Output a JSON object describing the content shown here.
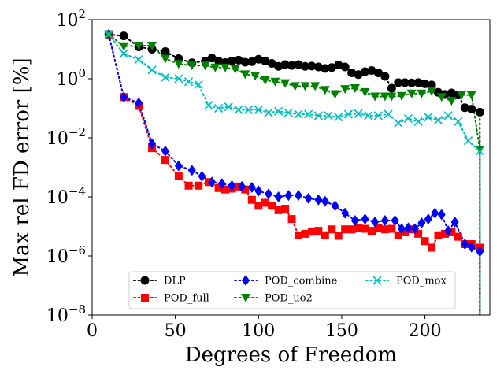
{
  "chart_data": {
    "type": "line",
    "xlabel": "Degrees of Freedom",
    "ylabel": "Max rel FD error [%]",
    "xlim": [
      0,
      239
    ],
    "ylim_log10": [
      -8,
      2
    ],
    "yscale": "log",
    "grid": false,
    "legend_position": "lower center",
    "x_ticks": [
      {
        "value": 0,
        "label": "0"
      },
      {
        "value": 50,
        "label": "50"
      },
      {
        "value": 100,
        "label": "100"
      },
      {
        "value": 150,
        "label": "150"
      },
      {
        "value": 200,
        "label": "200"
      }
    ],
    "y_ticks": [
      {
        "exp": 2,
        "base": "10",
        "sup": "2"
      },
      {
        "exp": 0,
        "base": "10",
        "sup": "0"
      },
      {
        "exp": -2,
        "base": "10",
        "sup": "−2"
      },
      {
        "exp": -4,
        "base": "10",
        "sup": "−4"
      },
      {
        "exp": -6,
        "base": "10",
        "sup": "−6"
      },
      {
        "exp": -8,
        "base": "10",
        "sup": "−8"
      }
    ],
    "series": [
      {
        "name": "DLP",
        "color": "#000000",
        "marker": "circle",
        "x": [
          10,
          19,
          28,
          36,
          44,
          52,
          60,
          68,
          72,
          76,
          80,
          84,
          88,
          92,
          96,
          100,
          104,
          108,
          112,
          116,
          120,
          124,
          128,
          132,
          136,
          140,
          144,
          148,
          152,
          156,
          160,
          164,
          168,
          172,
          176,
          180,
          184,
          188,
          192,
          196,
          200,
          204,
          208,
          212,
          216,
          220,
          224,
          228,
          233
        ],
        "log10y": [
          1.5,
          1.45,
          1.08,
          1.0,
          0.92,
          0.68,
          0.54,
          0.6,
          0.7,
          0.6,
          0.55,
          0.6,
          0.63,
          0.56,
          0.58,
          0.66,
          0.6,
          0.52,
          0.42,
          0.48,
          0.45,
          0.48,
          0.42,
          0.43,
          0.4,
          0.35,
          0.38,
          0.47,
          0.4,
          0.2,
          0.14,
          0.24,
          0.28,
          0.2,
          0.08,
          -0.32,
          -0.13,
          -0.13,
          -0.14,
          -0.13,
          -0.17,
          -0.21,
          -0.46,
          -0.53,
          -0.48,
          -0.55,
          -0.98,
          -1.03,
          -1.13
        ],
        "tail": -8
      },
      {
        "name": "POD_full",
        "color": "#ff0000",
        "marker": "square",
        "x": [
          10,
          19,
          28,
          36,
          44,
          52,
          58,
          64,
          70,
          76,
          80,
          84,
          88,
          92,
          96,
          100,
          104,
          108,
          112,
          116,
          120,
          124,
          128,
          132,
          136,
          140,
          144,
          148,
          152,
          156,
          160,
          164,
          168,
          172,
          176,
          180,
          184,
          188,
          192,
          196,
          200,
          204,
          208,
          212,
          216,
          220,
          224,
          228,
          233
        ],
        "log10y": [
          1.5,
          -0.62,
          -0.92,
          -2.35,
          -2.75,
          -3.3,
          -3.62,
          -3.62,
          -3.5,
          -3.7,
          -3.75,
          -3.72,
          -3.65,
          -3.75,
          -4.1,
          -4.3,
          -4.2,
          -4.3,
          -4.45,
          -4.4,
          -4.75,
          -5.3,
          -5.25,
          -5.18,
          -5.15,
          -5.3,
          -5.1,
          -5.32,
          -5.1,
          -5.1,
          -5.05,
          -5.08,
          -5.15,
          -5.05,
          -5.1,
          -5.08,
          -5.3,
          -5.2,
          -5.1,
          -5.25,
          -5.5,
          -5.72,
          -5.3,
          -5.25,
          -5.2,
          -5.35,
          -5.6,
          -5.6,
          -5.72
        ],
        "tail": -8
      },
      {
        "name": "POD_combine",
        "color": "#0000ff",
        "marker": "diamond",
        "x": [
          10,
          19,
          28,
          36,
          44,
          52,
          60,
          66,
          72,
          78,
          84,
          90,
          96,
          100,
          106,
          112,
          118,
          124,
          130,
          136,
          140,
          146,
          152,
          158,
          164,
          170,
          176,
          182,
          186,
          190,
          194,
          198,
          202,
          206,
          210,
          214,
          218,
          224,
          228,
          233
        ],
        "log10y": [
          1.5,
          -0.62,
          -0.82,
          -2.2,
          -2.45,
          -2.95,
          -3.1,
          -3.3,
          -3.5,
          -3.55,
          -3.62,
          -3.65,
          -3.68,
          -3.8,
          -3.9,
          -4.0,
          -3.95,
          -3.95,
          -4.05,
          -4.1,
          -4.15,
          -4.3,
          -4.55,
          -4.8,
          -4.75,
          -4.85,
          -4.8,
          -4.8,
          -5.08,
          -5.05,
          -5.08,
          -4.88,
          -4.75,
          -4.55,
          -4.6,
          -5.15,
          -4.85,
          -5.6,
          -5.7,
          -5.85
        ],
        "tail": -8
      },
      {
        "name": "POD_uo2",
        "color": "#008000",
        "marker": "triangle",
        "x": [
          10,
          19,
          28,
          36,
          44,
          52,
          60,
          68,
          74,
          80,
          86,
          92,
          98,
          104,
          110,
          116,
          122,
          128,
          134,
          140,
          146,
          152,
          158,
          164,
          170,
          176,
          180,
          186,
          192,
          198,
          204,
          210,
          216,
          222,
          228,
          233
        ],
        "log10y": [
          1.5,
          1.1,
          1.12,
          1.12,
          0.68,
          0.5,
          0.45,
          0.45,
          0.38,
          0.38,
          0.33,
          0.15,
          0.1,
          -0.05,
          -0.1,
          -0.15,
          -0.25,
          -0.25,
          -0.25,
          -0.38,
          -0.52,
          -0.35,
          -0.32,
          -0.45,
          -0.6,
          -0.6,
          -0.6,
          -0.58,
          -0.5,
          -0.5,
          -0.42,
          -0.62,
          -0.75,
          -0.55,
          -0.55,
          -2.4
        ],
        "tail": -8
      },
      {
        "name": "POD_mox",
        "color": "#00bfbf",
        "marker": "x",
        "x": [
          10,
          19,
          28,
          36,
          44,
          52,
          58,
          64,
          70,
          76,
          82,
          88,
          94,
          100,
          106,
          112,
          118,
          124,
          130,
          136,
          142,
          148,
          154,
          160,
          166,
          172,
          178,
          184,
          190,
          196,
          202,
          208,
          214,
          220,
          226,
          233
        ],
        "log10y": [
          1.5,
          0.85,
          0.65,
          0.3,
          0.05,
          0.0,
          -0.1,
          -0.2,
          -0.9,
          -1.0,
          -0.95,
          -1.05,
          -1.05,
          -1.05,
          -1.15,
          -1.1,
          -1.15,
          -1.2,
          -1.2,
          -1.25,
          -1.25,
          -1.3,
          -1.2,
          -1.18,
          -1.25,
          -1.25,
          -1.2,
          -1.5,
          -1.35,
          -1.45,
          -1.3,
          -1.4,
          -1.25,
          -1.45,
          -2.1,
          -2.45
        ],
        "tail": -8
      }
    ]
  }
}
